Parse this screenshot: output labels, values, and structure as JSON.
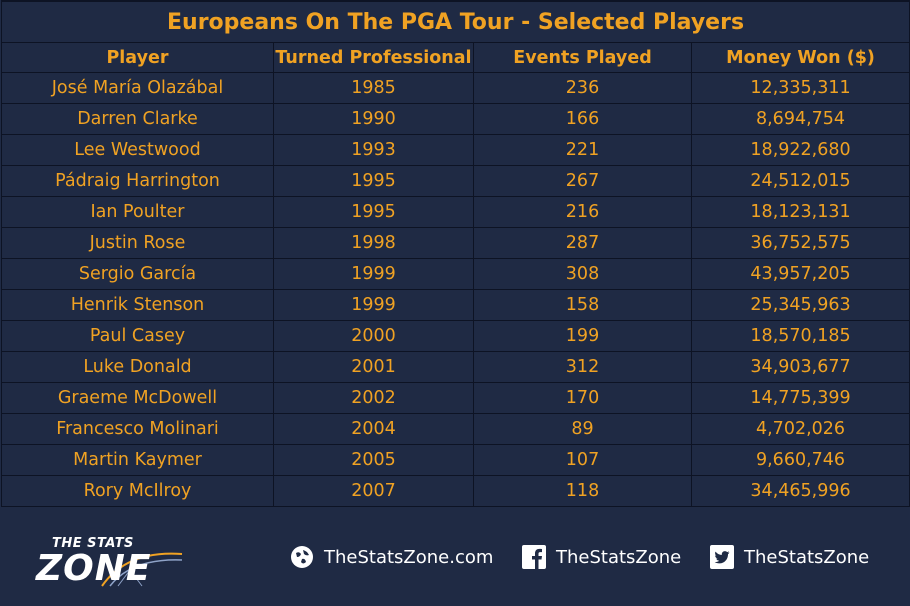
{
  "chart_data": {
    "type": "table",
    "title": "Europeans On The PGA Tour - Selected Players",
    "columns": [
      "Player",
      "Turned Professional",
      "Events Played",
      "Money Won ($)"
    ],
    "rows": [
      [
        "José María Olazábal",
        "1985",
        "236",
        "12,335,311"
      ],
      [
        "Darren Clarke",
        "1990",
        "166",
        "8,694,754"
      ],
      [
        "Lee Westwood",
        "1993",
        "221",
        "18,922,680"
      ],
      [
        "Pádraig Harrington",
        "1995",
        "267",
        "24,512,015"
      ],
      [
        "Ian Poulter",
        "1995",
        "216",
        "18,123,131"
      ],
      [
        "Justin Rose",
        "1998",
        "287",
        "36,752,575"
      ],
      [
        "Sergio García",
        "1999",
        "308",
        "43,957,205"
      ],
      [
        "Henrik Stenson",
        "1999",
        "158",
        "25,345,963"
      ],
      [
        "Paul Casey",
        "2000",
        "199",
        "18,570,185"
      ],
      [
        "Luke Donald",
        "2001",
        "312",
        "34,903,677"
      ],
      [
        "Graeme McDowell",
        "2002",
        "170",
        "14,775,399"
      ],
      [
        "Francesco Molinari",
        "2004",
        "89",
        "4,702,026"
      ],
      [
        "Martin Kaymer",
        "2005",
        "107",
        "9,660,746"
      ],
      [
        "Rory McIlroy",
        "2007",
        "118",
        "34,465,996"
      ]
    ]
  },
  "footer": {
    "logo_text_top": "THE STATS",
    "logo_text_main": "ZONE",
    "website": "TheStatsZone.com",
    "facebook": "TheStatsZone",
    "twitter": "TheStatsZone",
    "icons": [
      "globe-icon",
      "facebook-icon",
      "twitter-icon"
    ]
  },
  "colors": {
    "background": "#1f2a44",
    "text_accent": "#f0a223",
    "grid": "#0d1324",
    "footer_text": "#ffffff"
  }
}
